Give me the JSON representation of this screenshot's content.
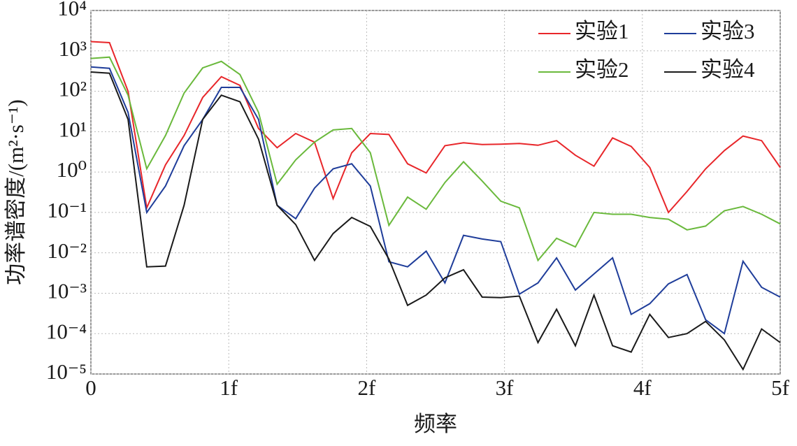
{
  "chart_data": {
    "type": "line",
    "xlabel": "频率",
    "ylabel": "功率谱密度/(m²·s⁻¹)",
    "log_y": true,
    "grid": true,
    "legend": "top-right",
    "xlim": [
      0,
      5
    ],
    "xticks": [
      0,
      {
        "value": 1,
        "label": "1f"
      },
      {
        "value": 2,
        "label": "2f"
      },
      {
        "value": 3,
        "label": "3f"
      },
      {
        "value": 4,
        "label": "4f"
      },
      {
        "value": 5,
        "label": "5f"
      }
    ],
    "ylim": [
      1e-05,
      10000
    ],
    "yticks": [
      {
        "value": 1e-05,
        "label": "10⁻⁵"
      },
      {
        "value": 0.0001,
        "label": "10⁻⁴"
      },
      {
        "value": 0.001,
        "label": "10⁻³"
      },
      {
        "value": 0.01,
        "label": "10⁻²"
      },
      {
        "value": 0.1,
        "label": "10⁻¹"
      },
      {
        "value": 1,
        "label": "10⁰"
      },
      {
        "value": 10,
        "label": "10¹"
      },
      {
        "value": 100,
        "label": "10²"
      },
      {
        "value": 1000,
        "label": "10³"
      },
      {
        "value": 10000,
        "label": "10⁴"
      }
    ],
    "x": [
      0,
      0.135,
      0.27,
      0.405,
      0.541,
      0.676,
      0.811,
      0.946,
      1.081,
      1.216,
      1.351,
      1.486,
      1.622,
      1.757,
      1.892,
      2.027,
      2.162,
      2.297,
      2.432,
      2.568,
      2.703,
      2.838,
      2.973,
      3.108,
      3.243,
      3.378,
      3.514,
      3.649,
      3.784,
      3.919,
      4.054,
      4.189,
      4.324,
      4.459,
      4.595,
      4.73,
      4.865,
      5
    ],
    "series": [
      {
        "name": "实验1",
        "color": "#e8262a",
        "values": [
          1700,
          1600,
          100,
          0.13,
          1.5,
          8,
          70,
          230,
          140,
          12,
          4,
          9,
          5.5,
          0.22,
          3,
          9,
          8.5,
          1.6,
          0.95,
          4.5,
          5.3,
          4.8,
          4.9,
          5.1,
          4.6,
          6,
          2.6,
          1.4,
          7,
          4.3,
          1.3,
          0.1,
          0.33,
          1.2,
          3.4,
          7.8,
          6,
          1.3
        ]
      },
      {
        "name": "实验2",
        "color": "#6ab93c",
        "values": [
          650,
          700,
          80,
          1.2,
          8,
          90,
          380,
          550,
          260,
          30,
          0.5,
          2,
          5.5,
          11,
          12,
          3,
          0.048,
          0.24,
          0.12,
          0.55,
          1.8,
          0.6,
          0.19,
          0.13,
          0.0065,
          0.023,
          0.014,
          0.1,
          0.09,
          0.09,
          0.075,
          0.068,
          0.037,
          0.046,
          0.11,
          0.14,
          0.09,
          0.052
        ]
      },
      {
        "name": "实验3",
        "color": "#1f3d9a",
        "values": [
          400,
          370,
          30,
          0.1,
          0.45,
          4.5,
          20,
          125,
          125,
          20,
          0.15,
          0.07,
          0.4,
          1.2,
          1.6,
          0.45,
          0.006,
          0.0045,
          0.011,
          0.0018,
          0.027,
          0.022,
          0.019,
          0.00095,
          0.0018,
          0.0075,
          0.0012,
          0.003,
          0.0075,
          0.0003,
          0.00055,
          0.0017,
          0.0029,
          0.00022,
          0.0001,
          0.0062,
          0.0014,
          0.0008
        ]
      },
      {
        "name": "实验4",
        "color": "#1a1a1a",
        "values": [
          300,
          280,
          20,
          0.0045,
          0.0047,
          0.15,
          20,
          80,
          55,
          6.5,
          0.15,
          0.05,
          0.0065,
          0.03,
          0.075,
          0.045,
          0.007,
          0.0005,
          0.0009,
          0.0024,
          0.0038,
          0.0008,
          0.00078,
          0.00085,
          6e-05,
          0.0004,
          5e-05,
          0.0009,
          5e-05,
          3.5e-05,
          0.0003,
          8e-05,
          0.0001,
          0.0002,
          7e-05,
          1.3e-05,
          0.00013,
          6e-05
        ]
      }
    ]
  }
}
